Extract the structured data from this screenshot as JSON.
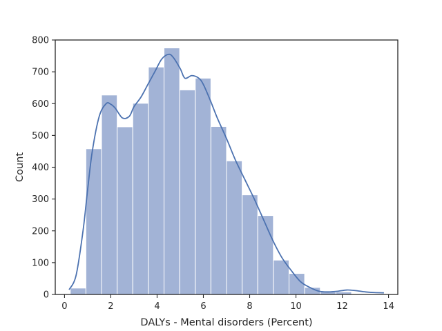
{
  "chart_data": {
    "type": "bar",
    "subtype": "histogram-with-kde",
    "title": "",
    "xlabel": "DALYs - Mental disorders (Percent)",
    "ylabel": "Count",
    "xlim": [
      -0.4,
      14.4
    ],
    "ylim": [
      0,
      800
    ],
    "xticks": [
      0,
      2,
      4,
      6,
      8,
      10,
      12,
      14
    ],
    "yticks": [
      0,
      100,
      200,
      300,
      400,
      500,
      600,
      700,
      800
    ],
    "bins": [
      {
        "x0": 0.25,
        "x1": 0.925,
        "count": 20
      },
      {
        "x0": 0.925,
        "x1": 1.6,
        "count": 458
      },
      {
        "x0": 1.6,
        "x1": 2.275,
        "count": 627
      },
      {
        "x0": 2.275,
        "x1": 2.95,
        "count": 527
      },
      {
        "x0": 2.95,
        "x1": 3.625,
        "count": 601
      },
      {
        "x0": 3.625,
        "x1": 4.3,
        "count": 715
      },
      {
        "x0": 4.3,
        "x1": 4.975,
        "count": 775
      },
      {
        "x0": 4.975,
        "x1": 5.65,
        "count": 643
      },
      {
        "x0": 5.65,
        "x1": 6.325,
        "count": 680
      },
      {
        "x0": 6.325,
        "x1": 7.0,
        "count": 528
      },
      {
        "x0": 7.0,
        "x1": 7.675,
        "count": 420
      },
      {
        "x0": 7.675,
        "x1": 8.35,
        "count": 313
      },
      {
        "x0": 8.35,
        "x1": 9.025,
        "count": 248
      },
      {
        "x0": 9.025,
        "x1": 9.7,
        "count": 108
      },
      {
        "x0": 9.7,
        "x1": 10.375,
        "count": 66
      },
      {
        "x0": 10.375,
        "x1": 11.05,
        "count": 22
      },
      {
        "x0": 11.05,
        "x1": 11.725,
        "count": 8
      },
      {
        "x0": 11.725,
        "x1": 12.4,
        "count": 8
      },
      {
        "x0": 12.4,
        "x1": 13.075,
        "count": 0
      },
      {
        "x0": 13.075,
        "x1": 13.75,
        "count": 2
      }
    ],
    "kde": {
      "x": [
        0.2,
        0.5,
        0.8,
        1.0,
        1.2,
        1.5,
        1.8,
        2.0,
        2.2,
        2.5,
        2.8,
        3.0,
        3.3,
        3.6,
        3.9,
        4.2,
        4.5,
        4.7,
        5.0,
        5.2,
        5.5,
        5.8,
        6.0,
        6.3,
        6.6,
        7.0,
        7.4,
        7.8,
        8.2,
        8.6,
        9.0,
        9.4,
        9.8,
        10.2,
        10.6,
        11.0,
        11.4,
        11.8,
        12.2,
        12.6,
        13.0,
        13.4,
        13.8
      ],
      "y": [
        15,
        60,
        200,
        330,
        450,
        560,
        600,
        598,
        585,
        555,
        560,
        590,
        620,
        660,
        700,
        740,
        755,
        745,
        710,
        680,
        688,
        680,
        660,
        610,
        555,
        490,
        420,
        360,
        300,
        235,
        170,
        115,
        75,
        40,
        22,
        10,
        8,
        10,
        14,
        12,
        8,
        6,
        5
      ]
    },
    "grid": false,
    "legend": "none"
  }
}
